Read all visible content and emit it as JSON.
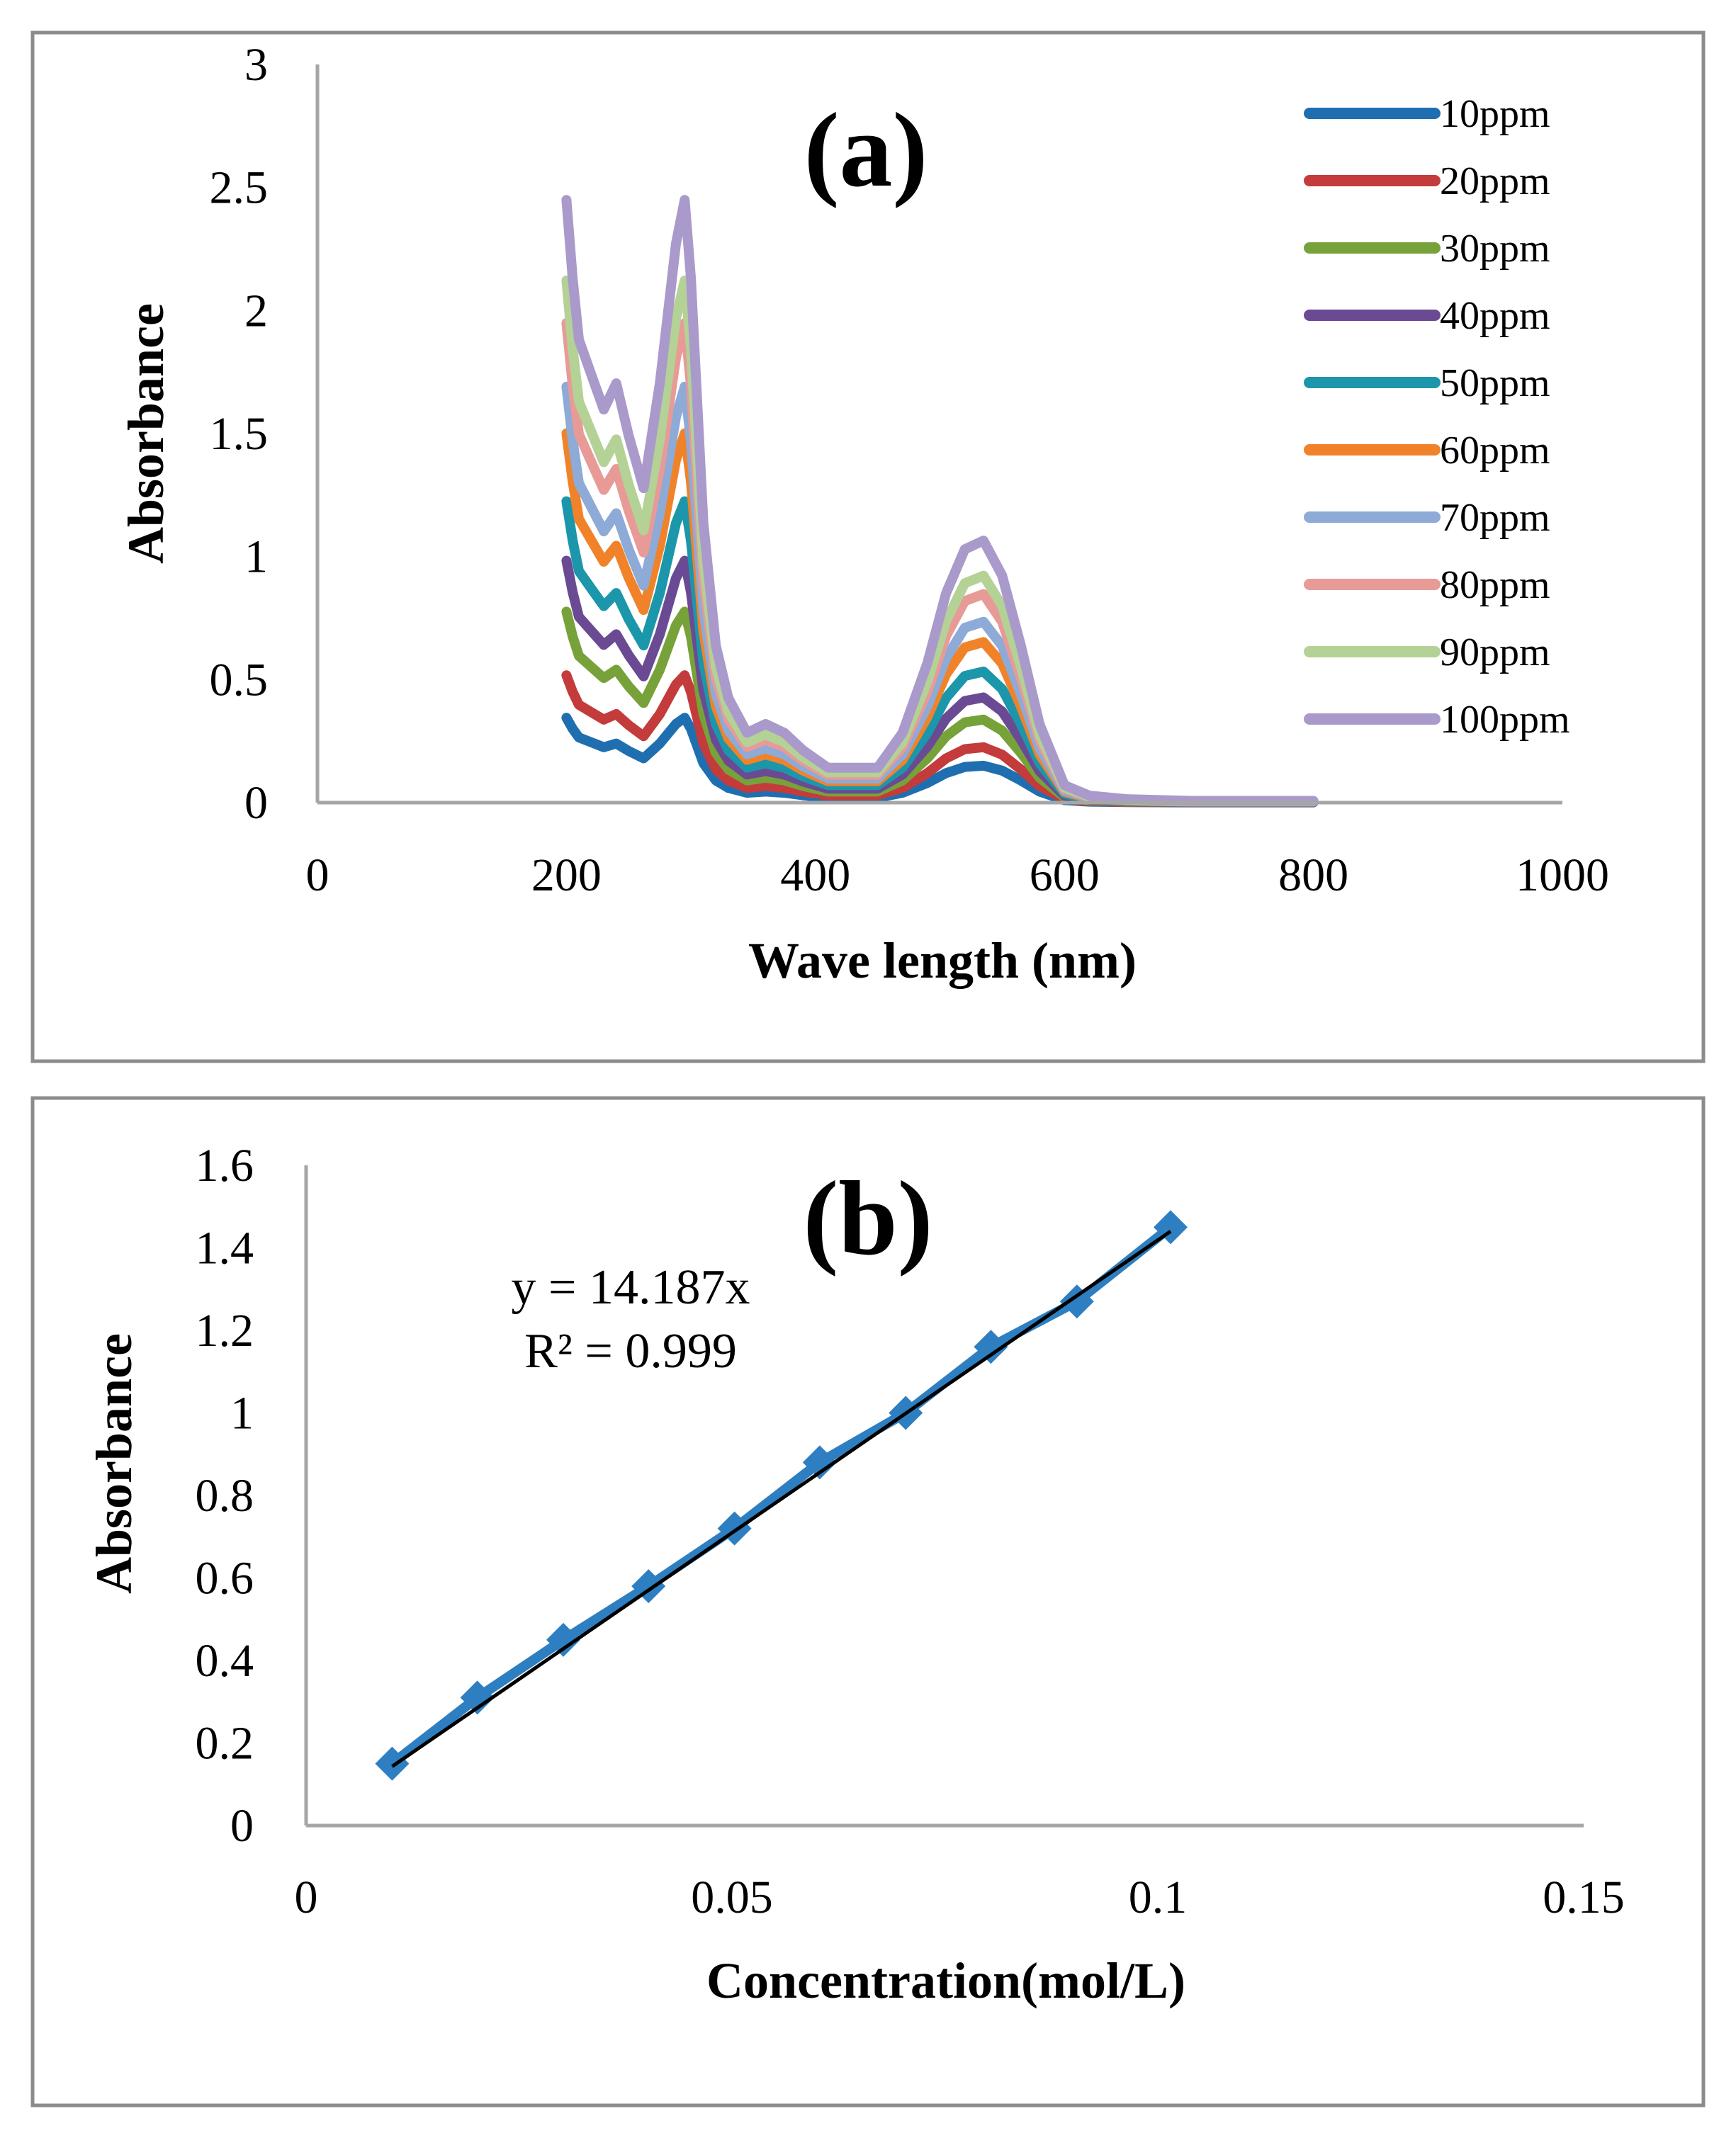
{
  "colors": {
    "frame": "#8c8c8c",
    "axis": "#a6a6a6",
    "trendline": "#000000",
    "scatter": "#2e7fc1"
  },
  "chart_data": [
    {
      "type": "line",
      "panel_label": "(a)",
      "xlabel": "Wave length (nm)",
      "ylabel": "Absorbance",
      "xlim": [
        0,
        1000
      ],
      "ylim": [
        0,
        3
      ],
      "xticks": [
        "0",
        "200",
        "400",
        "600",
        "800",
        "1000"
      ],
      "yticks": [
        "0",
        "0.5",
        "1",
        "1.5",
        "2",
        "2.5",
        "3"
      ],
      "grid": false,
      "legend_position": "top-right",
      "profile": {
        "x": [
          200,
          205,
          210,
          220,
          230,
          240,
          250,
          262,
          275,
          288,
          295,
          300,
          310,
          320,
          330,
          345,
          360,
          375,
          390,
          410,
          430,
          450,
          470,
          490,
          505,
          520,
          535,
          550,
          565,
          580,
          600,
          620,
          650,
          700,
          750,
          800
        ],
        "shape": [
          0.345,
          0.3,
          0.265,
          0.245,
          0.225,
          0.24,
          0.21,
          0.18,
          0.24,
          0.32,
          0.345,
          0.3,
          0.16,
          0.09,
          0.06,
          0.04,
          0.045,
          0.04,
          0.03,
          0.02,
          0.02,
          0.02,
          0.04,
          0.08,
          0.12,
          0.145,
          0.15,
          0.13,
          0.09,
          0.045,
          0.01,
          0.004,
          0.002,
          0.001,
          0.001,
          0.001
        ]
      },
      "series": [
        {
          "name": "10ppm",
          "color": "#1f6fb0",
          "scale": 1.0
        },
        {
          "name": "20ppm",
          "color": "#c43b3b",
          "scale": 1.5
        },
        {
          "name": "30ppm",
          "color": "#77a23a",
          "scale": 2.25
        },
        {
          "name": "40ppm",
          "color": "#6a4b93",
          "scale": 2.85
        },
        {
          "name": "50ppm",
          "color": "#1b96ab",
          "scale": 3.55
        },
        {
          "name": "60ppm",
          "color": "#f0832a",
          "scale": 4.35
        },
        {
          "name": "70ppm",
          "color": "#8eaad7",
          "scale": 4.9
        },
        {
          "name": "80ppm",
          "color": "#e89a97",
          "scale": 5.65
        },
        {
          "name": "90ppm",
          "color": "#b4d196",
          "scale": 6.15
        },
        {
          "name": "100ppm",
          "color": "#a99acb",
          "scale": 7.1
        }
      ]
    },
    {
      "type": "scatter",
      "panel_label": "(b)",
      "xlabel": "Concentration(mol/L)",
      "ylabel": "Absorbance",
      "xlim": [
        0,
        0.15
      ],
      "ylim": [
        0,
        1.6
      ],
      "xticks": [
        "0",
        "0.05",
        "0.1",
        "0.15"
      ],
      "yticks": [
        "0",
        "0.2",
        "0.4",
        "0.6",
        "0.8",
        "1",
        "1.2",
        "1.4",
        "1.6"
      ],
      "grid": false,
      "x": [
        0.0101,
        0.0201,
        0.0302,
        0.0402,
        0.0503,
        0.0603,
        0.0704,
        0.0804,
        0.0905,
        0.1015
      ],
      "y": [
        0.15,
        0.31,
        0.45,
        0.58,
        0.72,
        0.88,
        1.0,
        1.16,
        1.27,
        1.45
      ],
      "trendline": {
        "slope": 14.187,
        "equation": "y = 14.187x",
        "r2": "R² = 0.999"
      }
    }
  ]
}
